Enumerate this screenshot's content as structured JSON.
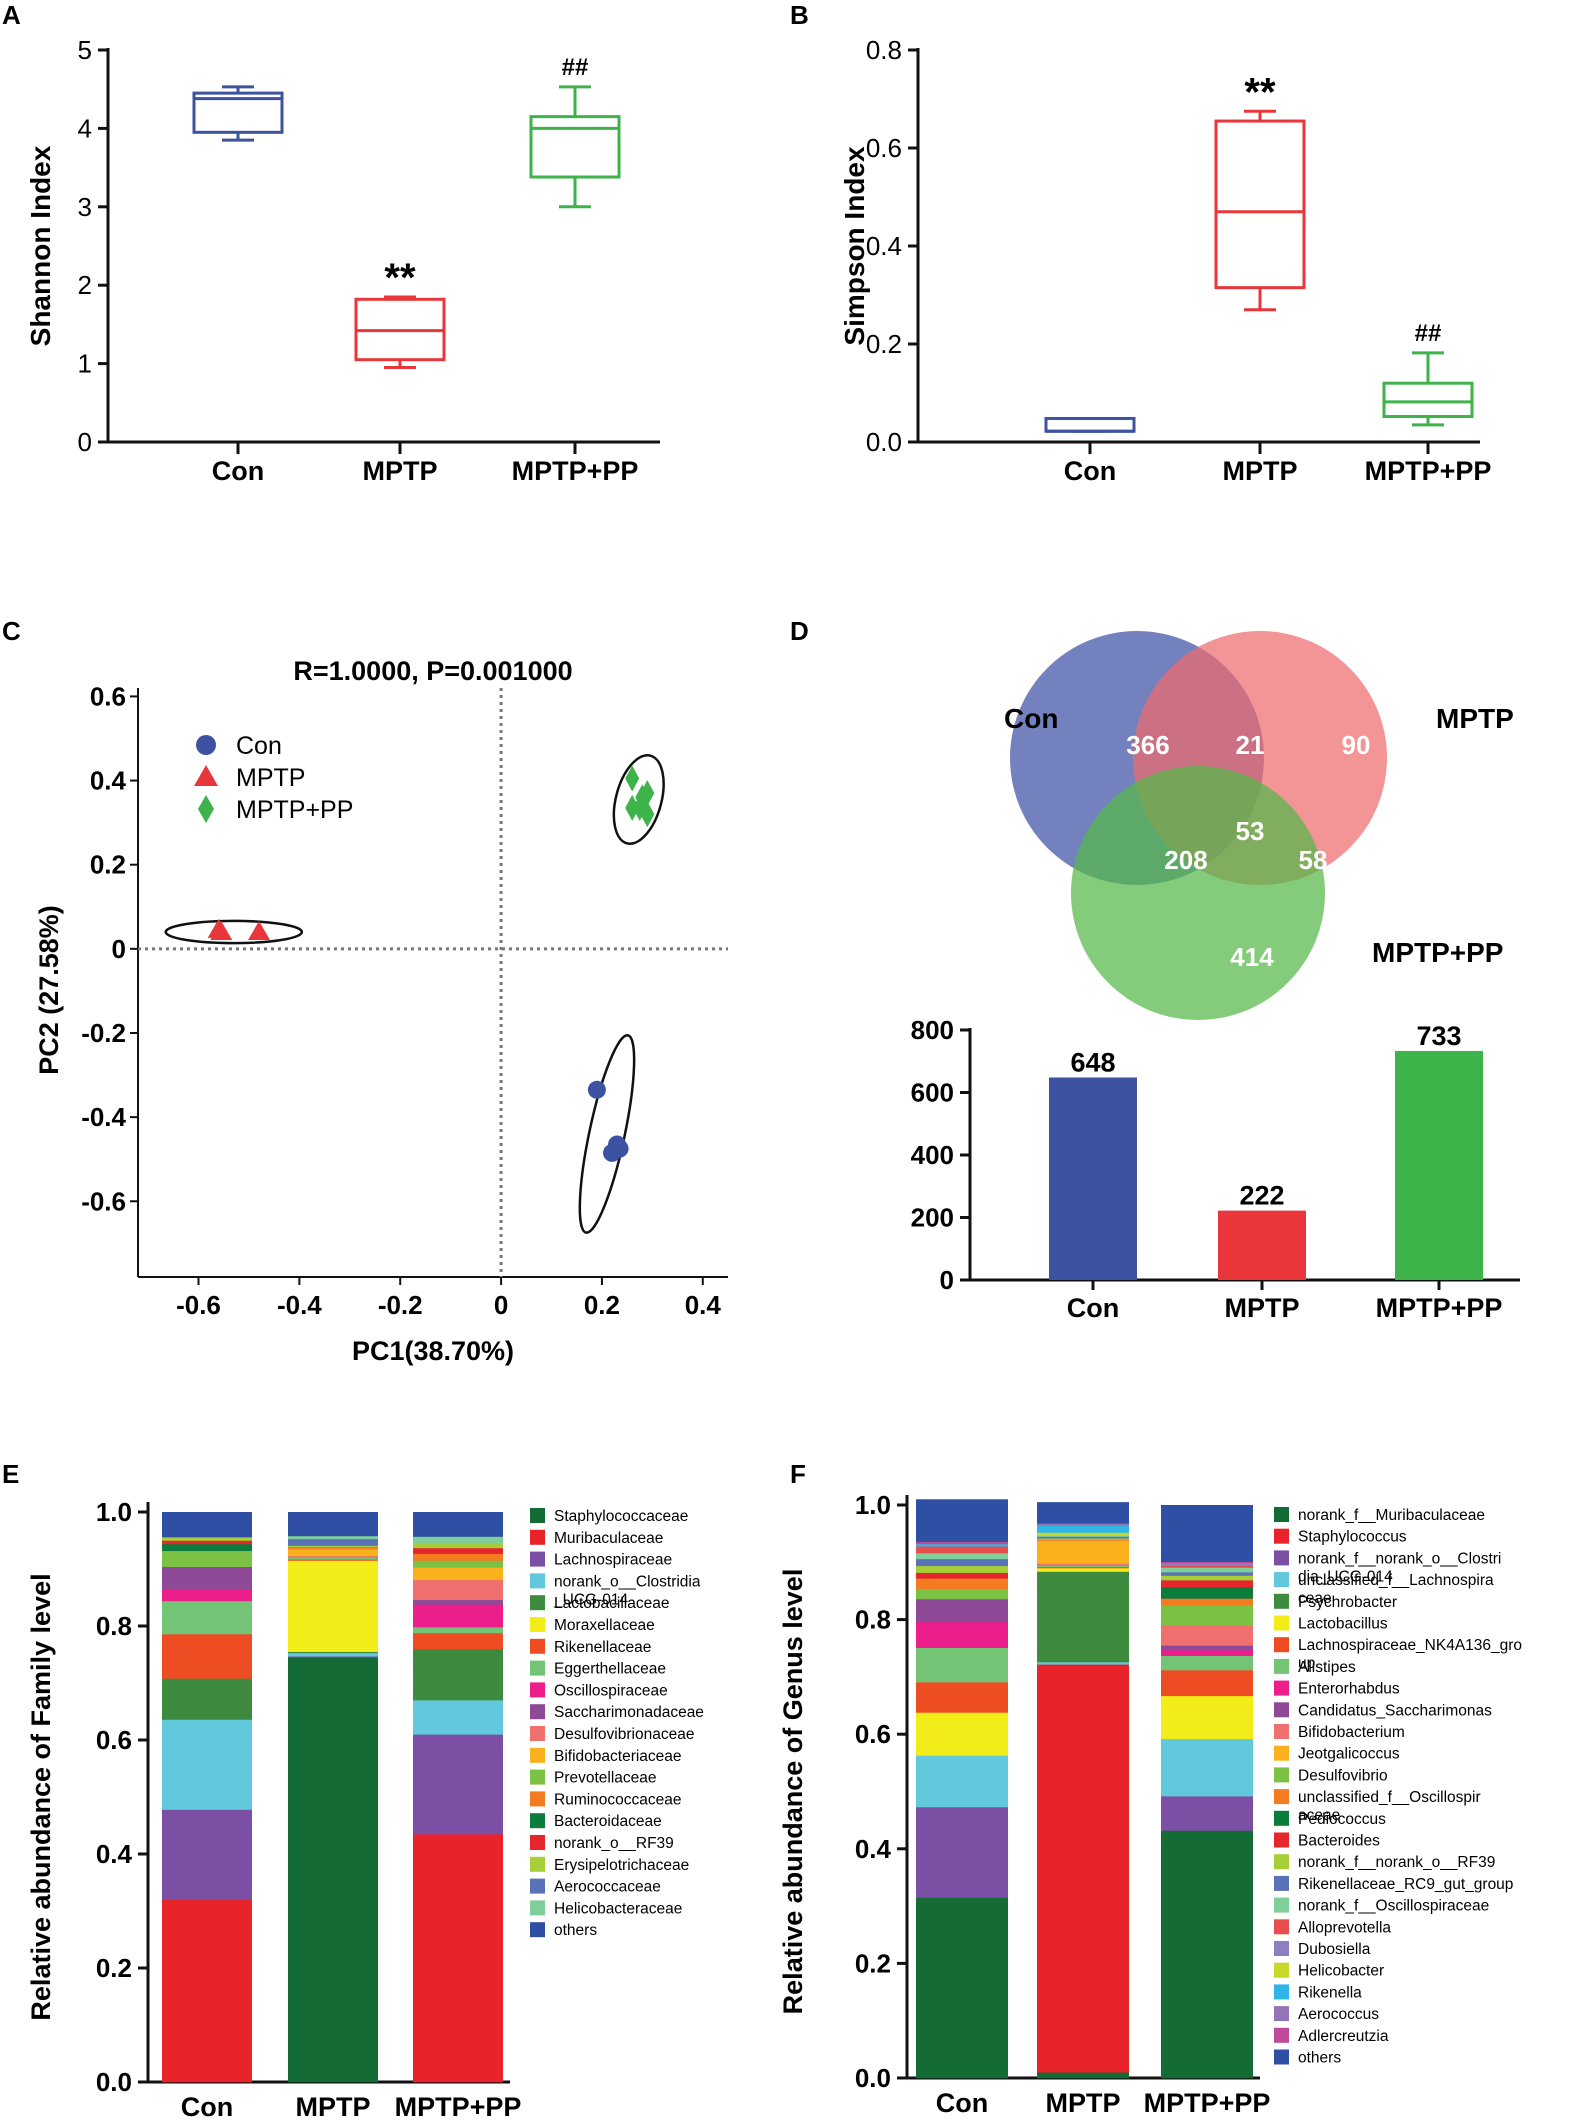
{
  "colors": {
    "con_blue": "#3D52A1",
    "mptp_red": "#E8363B",
    "pp_green": "#3DB34A",
    "axis": "#111111",
    "venn_con": "#3F51A6",
    "venn_mptp": "#EF6B6E",
    "venn_pp": "#55B848"
  },
  "panels": {
    "A": "A",
    "B": "B",
    "C": "C",
    "D": "D",
    "E": "E",
    "F": "F"
  },
  "chart_data": [
    {
      "id": "A",
      "type": "box",
      "ylabel": "Shannon Index",
      "ylim": [
        0,
        5
      ],
      "yticks": [
        "0",
        "1",
        "2",
        "3",
        "4",
        "5"
      ],
      "categories": [
        "Con",
        "MPTP",
        "MPTP+PP"
      ],
      "boxes": [
        {
          "min": 3.85,
          "q1": 3.95,
          "median": 4.38,
          "q3": 4.45,
          "max": 4.53,
          "mark": ""
        },
        {
          "min": 0.95,
          "q1": 1.05,
          "median": 1.42,
          "q3": 1.82,
          "max": 1.85,
          "mark": "**"
        },
        {
          "min": 3.0,
          "q1": 3.38,
          "median": 4.0,
          "q3": 4.15,
          "max": 4.53,
          "mark": "##"
        }
      ]
    },
    {
      "id": "B",
      "type": "box",
      "ylabel": "Simpson Index",
      "ylim": [
        0,
        0.8
      ],
      "yticks": [
        "0.0",
        "0.2",
        "0.4",
        "0.6",
        "0.8"
      ],
      "categories": [
        "Con",
        "MPTP",
        "MPTP+PP"
      ],
      "boxes": [
        {
          "min": 0.022,
          "q1": 0.022,
          "median": 0.022,
          "q3": 0.048,
          "max": 0.048,
          "mark": ""
        },
        {
          "min": 0.27,
          "q1": 0.315,
          "median": 0.47,
          "q3": 0.655,
          "max": 0.675,
          "mark": "**"
        },
        {
          "min": 0.035,
          "q1": 0.052,
          "median": 0.082,
          "q3": 0.12,
          "max": 0.182,
          "mark": "##"
        }
      ]
    },
    {
      "id": "C",
      "type": "scatter",
      "title": "R=1.0000, P=0.001000",
      "xlabel": "PC1(38.70%)",
      "ylabel": "PC2 (27.58%)",
      "xlim": [
        -0.72,
        0.45
      ],
      "ylim": [
        -0.78,
        0.62
      ],
      "xticks": [
        "-0.6",
        "-0.4",
        "-0.2",
        "0",
        "0.2",
        "0.4"
      ],
      "yticks": [
        "0.6",
        "0.4",
        "0.2",
        "0",
        "-0.2",
        "-0.4",
        "-0.6"
      ],
      "series": [
        {
          "name": "Con",
          "marker": "circle",
          "points": [
            [
              0.19,
              -0.335
            ],
            [
              0.23,
              -0.465
            ],
            [
              0.22,
              -0.485
            ],
            [
              0.235,
              -0.475
            ]
          ],
          "ellipse": {
            "cx": 0.21,
            "cy": -0.44,
            "rx": 0.2,
            "ry": 0.035,
            "angle": -78
          }
        },
        {
          "name": "MPTP",
          "marker": "triangle",
          "points": [
            [
              -0.56,
              0.045
            ],
            [
              -0.555,
              0.04
            ],
            [
              -0.48,
              0.04
            ]
          ],
          "ellipse": {
            "cx": -0.53,
            "cy": 0.04,
            "rx": 0.135,
            "ry": 0.022,
            "angle": 0
          }
        },
        {
          "name": "MPTP+PP",
          "marker": "diamond",
          "points": [
            [
              0.26,
              0.405
            ],
            [
              0.28,
              0.36
            ],
            [
              0.26,
              0.335
            ],
            [
              0.275,
              0.335
            ],
            [
              0.29,
              0.37
            ],
            [
              0.29,
              0.32
            ]
          ],
          "ellipse": {
            "cx": 0.273,
            "cy": 0.355,
            "rx": 0.09,
            "ry": 0.045,
            "angle": -75
          }
        }
      ]
    },
    {
      "id": "D-venn",
      "type": "venn",
      "sets": [
        "Con",
        "MPTP",
        "MPTP+PP"
      ],
      "regions": {
        "con_only": "366",
        "con_mptp": "21",
        "mptp_only": "90",
        "all": "53",
        "con_pp": "208",
        "mptp_pp": "58",
        "pp_only": "414"
      }
    },
    {
      "id": "D-bar",
      "type": "bar",
      "categories": [
        "Con",
        "MPTP",
        "MPTP+PP"
      ],
      "values": [
        648,
        222,
        733
      ],
      "labels": [
        "648",
        "222",
        "733"
      ],
      "ylim": [
        0,
        800
      ],
      "yticks": [
        "0",
        "200",
        "400",
        "600",
        "800"
      ]
    },
    {
      "id": "E",
      "type": "stacked-bar",
      "ylabel": "Relative abundance of Family level",
      "ylim": [
        0,
        1
      ],
      "yticks": [
        "0.0",
        "0.2",
        "0.4",
        "0.6",
        "0.8",
        "1.0"
      ],
      "categories": [
        "Con",
        "MPTP",
        "MPTP+PP"
      ],
      "series": [
        {
          "name": "Staphylococcaceae",
          "color": "#146B35",
          "values": [
            0.0,
            0.745,
            0.0
          ]
        },
        {
          "name": "Muribaculaceae",
          "color": "#E8232A",
          "values": [
            0.32,
            0.0,
            0.435
          ]
        },
        {
          "name": "Lachnospiraceae",
          "color": "#7B4FA3",
          "values": [
            0.158,
            0.002,
            0.175
          ]
        },
        {
          "name": "norank_o__Clostridia_UCG-014",
          "color": "#62C8DB",
          "values": [
            0.158,
            0.006,
            0.06
          ]
        },
        {
          "name": "Lactobacillaceae",
          "color": "#3E8A3F",
          "values": [
            0.072,
            0.002,
            0.09
          ]
        },
        {
          "name": "Moraxellaceae",
          "color": "#F2EC18",
          "values": [
            0.0,
            0.16,
            0.0
          ]
        },
        {
          "name": "Rikenellaceae",
          "color": "#EE4D23",
          "values": [
            0.078,
            0.002,
            0.028
          ]
        },
        {
          "name": "Eggerthellaceae",
          "color": "#74C476",
          "values": [
            0.058,
            0.003,
            0.01
          ]
        },
        {
          "name": "Oscillospiraceae",
          "color": "#EC1E8C",
          "values": [
            0.02,
            0.0,
            0.04
          ]
        },
        {
          "name": "Saccharimonadaceae",
          "color": "#8E4A97",
          "values": [
            0.04,
            0.0,
            0.008
          ]
        },
        {
          "name": "Desulfovibrionaceae",
          "color": "#F07070",
          "values": [
            0.0,
            0.003,
            0.035
          ]
        },
        {
          "name": "Bifidobacteriaceae",
          "color": "#FBB11B",
          "values": [
            0.0,
            0.012,
            0.022
          ]
        },
        {
          "name": "Prevotellaceae",
          "color": "#7BC143",
          "values": [
            0.028,
            0.0,
            0.012
          ]
        },
        {
          "name": "Ruminococcaceae",
          "color": "#F47B20",
          "values": [
            0.0,
            0.004,
            0.012
          ]
        },
        {
          "name": "Bacteroidaceae",
          "color": "#0C7C3C",
          "values": [
            0.012,
            0.0,
            0.0
          ]
        },
        {
          "name": "norank_o__RF39",
          "color": "#E5262D",
          "values": [
            0.006,
            0.0,
            0.01
          ]
        },
        {
          "name": "Erysipelotrichaceae",
          "color": "#A6CE39",
          "values": [
            0.006,
            0.002,
            0.008
          ]
        },
        {
          "name": "Aerococcaceae",
          "color": "#5A73B8",
          "values": [
            0.0,
            0.012,
            0.0
          ]
        },
        {
          "name": "Helicobacteraceae",
          "color": "#7ECF9A",
          "values": [
            0.0,
            0.005,
            0.012
          ]
        },
        {
          "name": "others",
          "color": "#2E4FA3",
          "values": [
            0.044,
            0.042,
            0.043
          ]
        }
      ]
    },
    {
      "id": "F",
      "type": "stacked-bar",
      "ylabel": "Relative abundance of Genus level",
      "ylim": [
        0,
        1
      ],
      "yticks": [
        "0.0",
        "0.2",
        "0.4",
        "0.6",
        "0.8",
        "1.0"
      ],
      "categories": [
        "Con",
        "MPTP",
        "MPTP+PP"
      ],
      "series": [
        {
          "name": "norank_f__Muribaculaceae",
          "color": "#146B35",
          "values": [
            0.315,
            0.01,
            0.432
          ]
        },
        {
          "name": "Staphylococcus",
          "color": "#E8232A",
          "values": [
            0.0,
            0.712,
            0.0
          ]
        },
        {
          "name": "norank_f__norank_o__Clostridia_UCG-014",
          "color": "#7B4FA3",
          "values": [
            0.158,
            0.0,
            0.06
          ]
        },
        {
          "name": "unclassified_f__Lachnospiraceae",
          "color": "#62C8DB",
          "values": [
            0.09,
            0.004,
            0.1
          ]
        },
        {
          "name": "Psychrobacter",
          "color": "#3E8A3F",
          "values": [
            0.0,
            0.158,
            0.0
          ]
        },
        {
          "name": "Lactobacillus",
          "color": "#F2EC18",
          "values": [
            0.075,
            0.006,
            0.075
          ]
        },
        {
          "name": "Lachnospiraceae_NK4A136_group",
          "color": "#EE4D23",
          "values": [
            0.053,
            0.002,
            0.045
          ]
        },
        {
          "name": "Alistipes",
          "color": "#74C476",
          "values": [
            0.06,
            0.002,
            0.025
          ]
        },
        {
          "name": "Enterorhabdus",
          "color": "#EC1E8C",
          "values": [
            0.045,
            0.0,
            0.01
          ]
        },
        {
          "name": "Candidatus_Saccharimonas",
          "color": "#8E4A97",
          "values": [
            0.04,
            0.0,
            0.008
          ]
        },
        {
          "name": "Bifidobacterium",
          "color": "#F07070",
          "values": [
            0.0,
            0.004,
            0.035
          ]
        },
        {
          "name": "Jeotgalicoccus",
          "color": "#FBB11B",
          "values": [
            0.0,
            0.04,
            0.0
          ]
        },
        {
          "name": "Desulfovibrio",
          "color": "#7BC143",
          "values": [
            0.018,
            0.0,
            0.035
          ]
        },
        {
          "name": "unclassified_f__Oscillospiraceae",
          "color": "#F47B20",
          "values": [
            0.018,
            0.002,
            0.012
          ]
        },
        {
          "name": "Pediococcus",
          "color": "#0C7C3C",
          "values": [
            0.0,
            0.0,
            0.02
          ]
        },
        {
          "name": "Bacteroides",
          "color": "#E5262D",
          "values": [
            0.01,
            0.0,
            0.012
          ]
        },
        {
          "name": "norank_f__norank_o__RF39",
          "color": "#A6CE39",
          "values": [
            0.012,
            0.002,
            0.008
          ]
        },
        {
          "name": "Rikenellaceae_RC9_gut_group",
          "color": "#5A73B8",
          "values": [
            0.012,
            0.003,
            0.006
          ]
        },
        {
          "name": "norank_f__Oscillospiraceae",
          "color": "#7ECF9A",
          "values": [
            0.01,
            0.002,
            0.008
          ]
        },
        {
          "name": "Alloprevotella",
          "color": "#E94E4E",
          "values": [
            0.012,
            0.0,
            0.004
          ]
        },
        {
          "name": "Dubosiella",
          "color": "#8D7FC0",
          "values": [
            0.0,
            0.0,
            0.004
          ]
        },
        {
          "name": "Helicobacter",
          "color": "#C6D92B",
          "values": [
            0.0,
            0.005,
            0.0
          ]
        },
        {
          "name": "Rikenella",
          "color": "#2EB6E8",
          "values": [
            0.004,
            0.012,
            0.0
          ]
        },
        {
          "name": "Aerococcus",
          "color": "#9474B6",
          "values": [
            0.0,
            0.004,
            0.0
          ]
        },
        {
          "name": "Adlercreutzia",
          "color": "#C04A9A",
          "values": [
            0.004,
            0.0,
            0.002
          ]
        },
        {
          "name": "others",
          "color": "#2E4FA3",
          "values": [
            0.074,
            0.037,
            0.099
          ]
        }
      ]
    }
  ]
}
